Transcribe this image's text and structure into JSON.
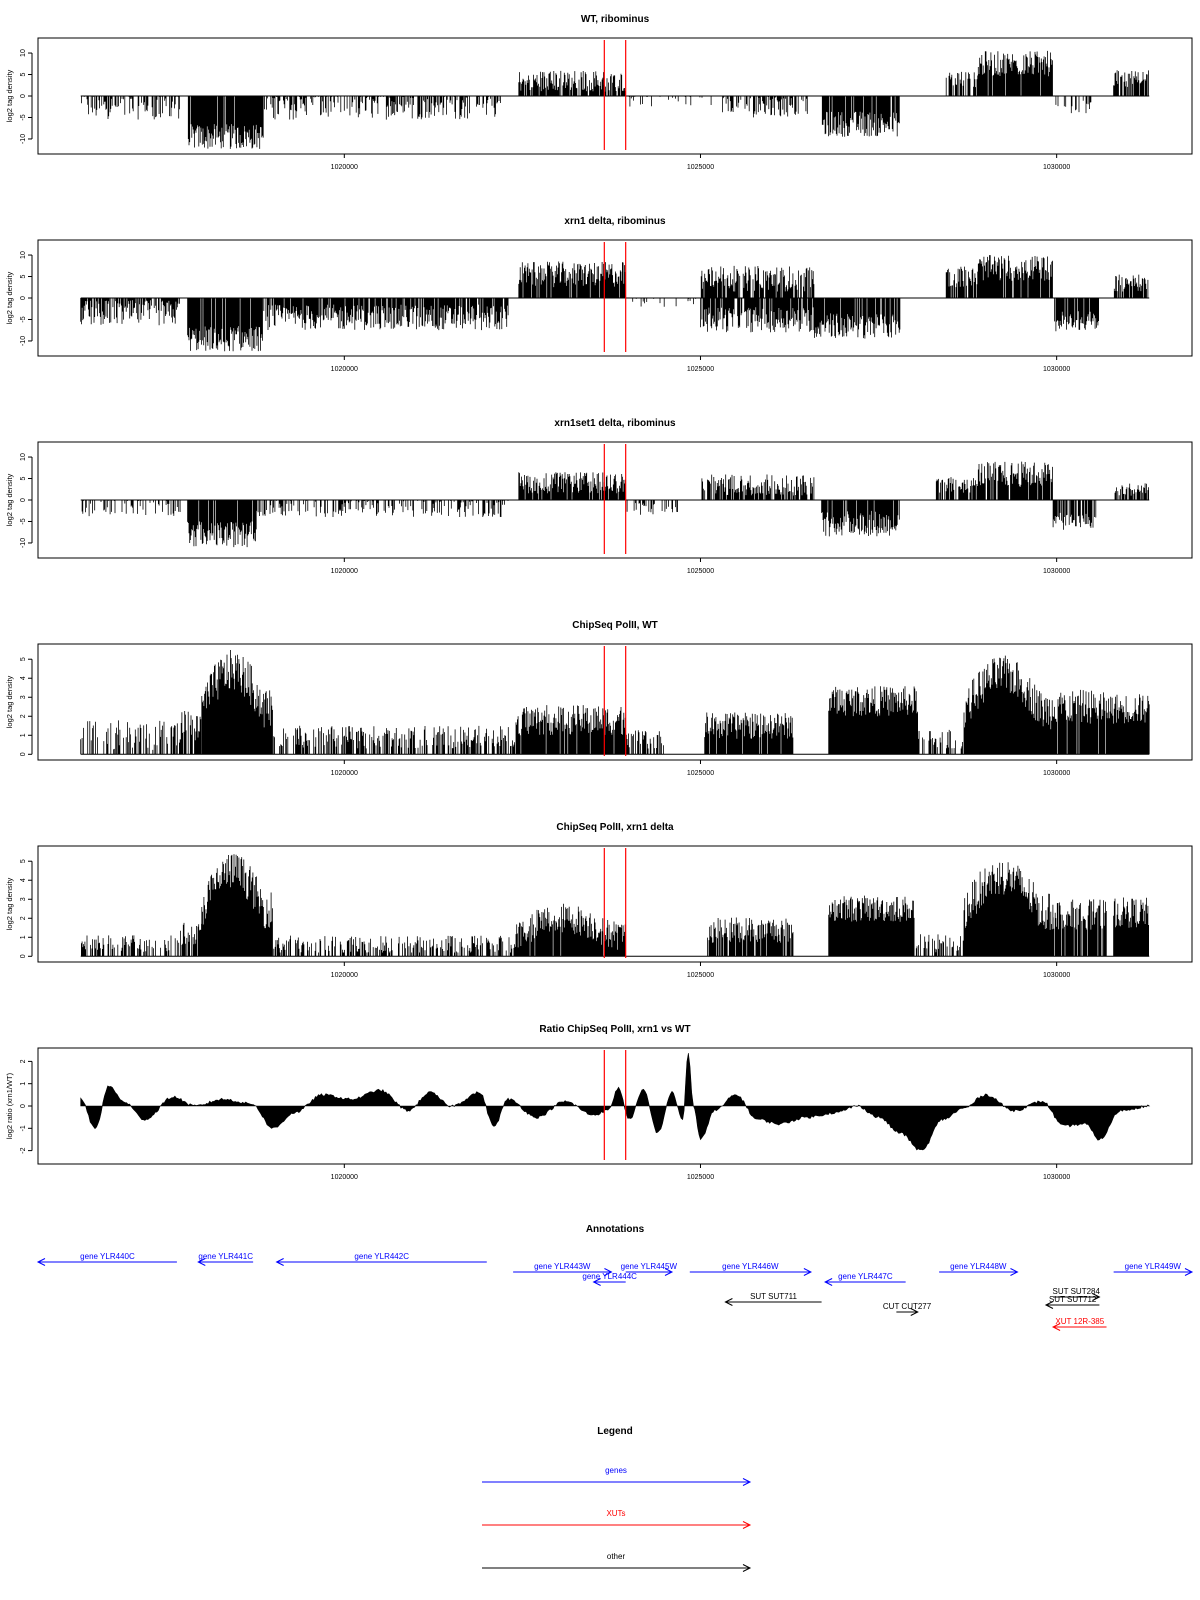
{
  "colors": {
    "gene": "#0000ff",
    "xut": "#ff0000",
    "other": "#000000",
    "marker": "#ff0000",
    "bars": "#000000"
  },
  "chart_data": [
    {
      "type": "bar",
      "title": "WT, ribominus",
      "ylabel": "log2 tag density",
      "xlim": [
        1015700,
        1031900
      ],
      "ylim": [
        -13.5,
        13.5
      ],
      "yticks": [
        10,
        5,
        0,
        -5,
        -10
      ],
      "yticklabels": [
        "10",
        "5",
        "0",
        "-5",
        "-10"
      ],
      "xticks": [
        1020000,
        1025000,
        1030000
      ],
      "xticklabels": [
        "1020000",
        "1025000",
        "1030000"
      ],
      "markers": [
        1023650,
        1023950
      ],
      "segments": [
        {
          "x": [
            1016300,
            1017700
          ],
          "y": -2.5,
          "var": 3,
          "density": 0.5
        },
        {
          "x": [
            1017800,
            1018870
          ],
          "y": -9.5,
          "var": 3,
          "density": 0.95
        },
        {
          "x": [
            1018870,
            1022200
          ],
          "y": -2.5,
          "var": 3,
          "density": 0.55
        },
        {
          "x": [
            1022450,
            1023950
          ],
          "y": 3.5,
          "var": 2.5,
          "density": 0.85
        },
        {
          "x": [
            1023950,
            1025300
          ],
          "y": -1.0,
          "var": 1.5,
          "density": 0.15
        },
        {
          "x": [
            1025300,
            1026500
          ],
          "y": -2.5,
          "var": 2.5,
          "density": 0.55
        },
        {
          "x": [
            1026700,
            1027800
          ],
          "y": -6.5,
          "var": 3,
          "density": 0.9
        },
        {
          "x": [
            1028450,
            1028900
          ],
          "y": 4,
          "var": 2,
          "density": 0.7
        },
        {
          "x": [
            1028900,
            1029950
          ],
          "y": 7.5,
          "var": 3,
          "density": 0.9
        },
        {
          "x": [
            1029950,
            1030500
          ],
          "y": -2.5,
          "var": 1.5,
          "density": 0.3
        },
        {
          "x": [
            1030800,
            1031300
          ],
          "y": 4,
          "var": 2,
          "density": 0.8
        }
      ]
    },
    {
      "type": "bar",
      "title": "xrn1 delta, ribominus",
      "ylabel": "log2 tag density",
      "xlim": [
        1015700,
        1031900
      ],
      "ylim": [
        -13.5,
        13.5
      ],
      "yticks": [
        10,
        5,
        0,
        -5,
        -10
      ],
      "yticklabels": [
        "10",
        "5",
        "0",
        "-5",
        "-10"
      ],
      "xticks": [
        1020000,
        1025000,
        1030000
      ],
      "xticklabels": [
        "1020000",
        "1025000",
        "1030000"
      ],
      "markers": [
        1023650,
        1023950
      ],
      "segments": [
        {
          "x": [
            1016300,
            1017700
          ],
          "y": -3.5,
          "var": 3,
          "density": 0.8
        },
        {
          "x": [
            1017800,
            1018870
          ],
          "y": -9.5,
          "var": 3,
          "density": 0.95
        },
        {
          "x": [
            1018870,
            1022300
          ],
          "y": -4.5,
          "var": 3,
          "density": 0.85
        },
        {
          "x": [
            1022450,
            1023950
          ],
          "y": 5.5,
          "var": 3,
          "density": 0.95
        },
        {
          "x": [
            1023950,
            1025000
          ],
          "y": -1.0,
          "var": 1.2,
          "density": 0.15
        },
        {
          "x": [
            1025000,
            1026600
          ],
          "y": 4.5,
          "var": 3,
          "density": 0.8
        },
        {
          "x": [
            1025000,
            1026600
          ],
          "y": -5.0,
          "var": 3,
          "density": 0.8
        },
        {
          "x": [
            1026600,
            1027800
          ],
          "y": -6.5,
          "var": 3,
          "density": 0.9
        },
        {
          "x": [
            1028450,
            1028900
          ],
          "y": 5,
          "var": 2.5,
          "density": 0.85
        },
        {
          "x": [
            1028900,
            1029950
          ],
          "y": 7,
          "var": 3,
          "density": 0.95
        },
        {
          "x": [
            1029950,
            1030600
          ],
          "y": -5.5,
          "var": 2.5,
          "density": 0.8
        },
        {
          "x": [
            1030800,
            1031300
          ],
          "y": 3.5,
          "var": 2,
          "density": 0.8
        }
      ]
    },
    {
      "type": "bar",
      "title": "xrn1set1 delta, ribominus",
      "ylabel": "log2 tag density",
      "xlim": [
        1015700,
        1031900
      ],
      "ylim": [
        -13.5,
        13.5
      ],
      "yticks": [
        10,
        5,
        0,
        -5,
        -10
      ],
      "yticklabels": [
        "10",
        "5",
        "0",
        "-5",
        "-10"
      ],
      "xticks": [
        1020000,
        1025000,
        1030000
      ],
      "xticklabels": [
        "1020000",
        "1025000",
        "1030000"
      ],
      "markers": [
        1023650,
        1023950
      ],
      "segments": [
        {
          "x": [
            1016300,
            1017700
          ],
          "y": -1.8,
          "var": 2,
          "density": 0.35
        },
        {
          "x": [
            1017800,
            1018770
          ],
          "y": -8,
          "var": 3,
          "density": 0.95
        },
        {
          "x": [
            1018770,
            1022300
          ],
          "y": -2,
          "var": 2,
          "density": 0.45
        },
        {
          "x": [
            1022450,
            1023950
          ],
          "y": 4,
          "var": 2.5,
          "density": 0.9
        },
        {
          "x": [
            1023950,
            1024700
          ],
          "y": -2,
          "var": 1.5,
          "density": 0.4
        },
        {
          "x": [
            1025000,
            1026600
          ],
          "y": 3.5,
          "var": 2.5,
          "density": 0.7
        },
        {
          "x": [
            1026700,
            1027800
          ],
          "y": -5.5,
          "var": 3,
          "density": 0.85
        },
        {
          "x": [
            1028300,
            1028900
          ],
          "y": 3.5,
          "var": 2,
          "density": 0.7
        },
        {
          "x": [
            1028900,
            1029950
          ],
          "y": 6,
          "var": 3,
          "density": 0.85
        },
        {
          "x": [
            1029950,
            1030550
          ],
          "y": -5,
          "var": 2,
          "density": 0.7
        },
        {
          "x": [
            1030800,
            1031300
          ],
          "y": 2.5,
          "var": 1.5,
          "density": 0.7
        }
      ]
    },
    {
      "type": "bar",
      "title": "ChipSeq PolII, WT",
      "ylabel": "log2 tag density",
      "xlim": [
        1015700,
        1031900
      ],
      "ylim": [
        -0.3,
        5.8
      ],
      "yticks": [
        0,
        1,
        2,
        3,
        4,
        5
      ],
      "yticklabels": [
        "0",
        "1",
        "2",
        "3",
        "4",
        "5"
      ],
      "xticks": [
        1020000,
        1025000,
        1030000
      ],
      "xticklabels": [
        "1020000",
        "1025000",
        "1030000"
      ],
      "markers": [
        1023650,
        1023950
      ],
      "segments": [
        {
          "x": [
            1016300,
            1017700
          ],
          "y": 1.0,
          "var": 0.8,
          "density": 0.5
        },
        {
          "x": [
            1017700,
            1018000
          ],
          "y": 1.5,
          "var": 0.8,
          "density": 0.8
        },
        {
          "x": [
            1018000,
            1019000
          ],
          "y": 4.4,
          "var": 1.1,
          "density": 1.0,
          "shape": "hump"
        },
        {
          "x": [
            1019000,
            1022400
          ],
          "y": 0.9,
          "var": 0.6,
          "density": 0.55
        },
        {
          "x": [
            1022400,
            1023950
          ],
          "y": 1.8,
          "var": 0.8,
          "density": 0.95
        },
        {
          "x": [
            1023950,
            1024500
          ],
          "y": 0.8,
          "var": 0.5,
          "density": 0.5
        },
        {
          "x": [
            1025050,
            1026300
          ],
          "y": 1.5,
          "var": 0.7,
          "density": 0.9
        },
        {
          "x": [
            1026800,
            1028050
          ],
          "y": 2.8,
          "var": 0.8,
          "density": 1.0
        },
        {
          "x": [
            1028050,
            1028700
          ],
          "y": 0.8,
          "var": 0.5,
          "density": 0.5
        },
        {
          "x": [
            1028700,
            1029950
          ],
          "y": 4.2,
          "var": 1.0,
          "density": 1.0,
          "shape": "hump"
        },
        {
          "x": [
            1029950,
            1030700
          ],
          "y": 2.5,
          "var": 0.9,
          "density": 0.9
        },
        {
          "x": [
            1030700,
            1031300
          ],
          "y": 2.4,
          "var": 0.8,
          "density": 1.0
        }
      ]
    },
    {
      "type": "bar",
      "title": "ChipSeq PolII, xrn1 delta",
      "ylabel": "log2 tag density",
      "xlim": [
        1015700,
        1031900
      ],
      "ylim": [
        -0.3,
        5.8
      ],
      "yticks": [
        0,
        1,
        2,
        3,
        4,
        5
      ],
      "yticklabels": [
        "0",
        "1",
        "2",
        "3",
        "4",
        "5"
      ],
      "xticks": [
        1020000,
        1025000,
        1030000
      ],
      "xticklabels": [
        "1020000",
        "1025000",
        "1030000"
      ],
      "markers": [
        1023650,
        1023950
      ],
      "segments": [
        {
          "x": [
            1016300,
            1017700
          ],
          "y": 0.7,
          "var": 0.5,
          "density": 0.45
        },
        {
          "x": [
            1017700,
            1018000
          ],
          "y": 1.2,
          "var": 0.6,
          "density": 0.8
        },
        {
          "x": [
            1018000,
            1019000
          ],
          "y": 4.5,
          "var": 1.0,
          "density": 1.0,
          "shape": "hump"
        },
        {
          "x": [
            1019000,
            1022400
          ],
          "y": 0.6,
          "var": 0.5,
          "density": 0.5
        },
        {
          "x": [
            1022400,
            1023950
          ],
          "y": 2.0,
          "var": 0.8,
          "density": 0.95,
          "shape": "hump"
        },
        {
          "x": [
            1025100,
            1026300
          ],
          "y": 1.4,
          "var": 0.7,
          "density": 0.85
        },
        {
          "x": [
            1026800,
            1028000
          ],
          "y": 2.5,
          "var": 0.7,
          "density": 1.0
        },
        {
          "x": [
            1028000,
            1028700
          ],
          "y": 0.7,
          "var": 0.5,
          "density": 0.5
        },
        {
          "x": [
            1028700,
            1029950
          ],
          "y": 4.2,
          "var": 1.0,
          "density": 1.0,
          "shape": "hump"
        },
        {
          "x": [
            1029950,
            1030700
          ],
          "y": 2.2,
          "var": 0.8,
          "density": 0.9
        },
        {
          "x": [
            1030800,
            1031300
          ],
          "y": 2.3,
          "var": 0.8,
          "density": 1.0
        }
      ]
    },
    {
      "type": "area",
      "title": "Ratio ChipSeq PolII, xrn1 vs WT",
      "ylabel": "log2 ratio (xrn1/WT)",
      "xlim": [
        1015700,
        1031900
      ],
      "ylim": [
        -2.6,
        2.6
      ],
      "yticks": [
        2,
        1,
        0,
        -1,
        -2
      ],
      "yticklabels": [
        "2",
        "1",
        "0",
        "-1",
        "-2"
      ],
      "xticks": [
        1020000,
        1025000,
        1030000
      ],
      "xticklabels": [
        "1020000",
        "1025000",
        "1030000"
      ],
      "markers": [
        1023650,
        1023950
      ],
      "x": [
        1016300,
        1016500,
        1016700,
        1016900,
        1017200,
        1017600,
        1017900,
        1018300,
        1018700,
        1019000,
        1019300,
        1019700,
        1020100,
        1020500,
        1020900,
        1021200,
        1021500,
        1021900,
        1022100,
        1022300,
        1022700,
        1023100,
        1023500,
        1023700,
        1023850,
        1024000,
        1024200,
        1024400,
        1024600,
        1024750,
        1024830,
        1024900,
        1025000,
        1025200,
        1025500,
        1025800,
        1026100,
        1026500,
        1026900,
        1027200,
        1027500,
        1027800,
        1028100,
        1028400,
        1028700,
        1029000,
        1029400,
        1029800,
        1030100,
        1030400,
        1030600,
        1030900,
        1031300
      ],
      "y": [
        0.3,
        -1.0,
        0.9,
        0.2,
        -0.6,
        0.4,
        0.0,
        0.3,
        0.1,
        -1.0,
        -0.3,
        0.5,
        0.3,
        0.7,
        -0.2,
        0.6,
        0.0,
        0.6,
        -0.9,
        0.3,
        -0.5,
        0.2,
        -0.4,
        -0.2,
        0.8,
        -0.6,
        0.7,
        -1.2,
        0.6,
        -0.6,
        2.4,
        0.0,
        -1.5,
        -0.2,
        0.5,
        -0.6,
        -0.8,
        -0.5,
        -0.3,
        0.0,
        -0.5,
        -1.2,
        -2.0,
        -0.6,
        -0.1,
        0.5,
        -0.2,
        0.2,
        -0.9,
        -0.8,
        -1.5,
        -0.2,
        0.0
      ]
    }
  ],
  "annotations": {
    "title": "Annotations",
    "features": [
      {
        "label": "gene YLR440C",
        "kind": "gene",
        "start": 1015700,
        "end": 1017650,
        "strand": "-",
        "row": 0
      },
      {
        "label": "gene YLR441C",
        "kind": "gene",
        "start": 1017950,
        "end": 1018720,
        "strand": "-",
        "row": 0
      },
      {
        "label": "gene YLR442C",
        "kind": "gene",
        "start": 1019050,
        "end": 1022000,
        "strand": "-",
        "row": 0
      },
      {
        "label": "gene YLR443W",
        "kind": "gene",
        "start": 1022370,
        "end": 1023750,
        "strand": "+",
        "row": 1
      },
      {
        "label": "gene YLR444C",
        "kind": "gene",
        "start": 1023500,
        "end": 1023950,
        "strand": "-",
        "row": 2
      },
      {
        "label": "gene YLR445W",
        "kind": "gene",
        "start": 1023950,
        "end": 1024600,
        "strand": "+",
        "row": 1
      },
      {
        "label": "gene YLR446W",
        "kind": "gene",
        "start": 1024850,
        "end": 1026550,
        "strand": "+",
        "row": 1
      },
      {
        "label": "gene YLR447C",
        "kind": "gene",
        "start": 1026750,
        "end": 1027880,
        "strand": "-",
        "row": 2
      },
      {
        "label": "gene YLR448W",
        "kind": "gene",
        "start": 1028350,
        "end": 1029450,
        "strand": "+",
        "row": 1
      },
      {
        "label": "gene YLR449W",
        "kind": "gene",
        "start": 1030800,
        "end": 1031900,
        "strand": "+",
        "row": 1
      },
      {
        "label": "SUT SUT711",
        "kind": "other",
        "start": 1025350,
        "end": 1026700,
        "strand": "-",
        "row": 4
      },
      {
        "label": "CUT CUT277",
        "kind": "other",
        "start": 1027750,
        "end": 1028050,
        "strand": "+",
        "row": 5
      },
      {
        "label": "SUT SUT284",
        "kind": "other",
        "start": 1029950,
        "end": 1030600,
        "strand": "+",
        "row": 3.5
      },
      {
        "label": "SUT SUT712",
        "kind": "other",
        "start": 1029850,
        "end": 1030600,
        "strand": "-",
        "row": 4.3
      },
      {
        "label": "XUT 12R-385",
        "kind": "xut",
        "start": 1029950,
        "end": 1030700,
        "strand": "-",
        "row": 6.5
      }
    ]
  },
  "legend": {
    "title": "Legend",
    "items": [
      {
        "label": "genes",
        "kind": "gene"
      },
      {
        "label": "XUTs",
        "kind": "xut"
      },
      {
        "label": "other",
        "kind": "other"
      }
    ]
  }
}
